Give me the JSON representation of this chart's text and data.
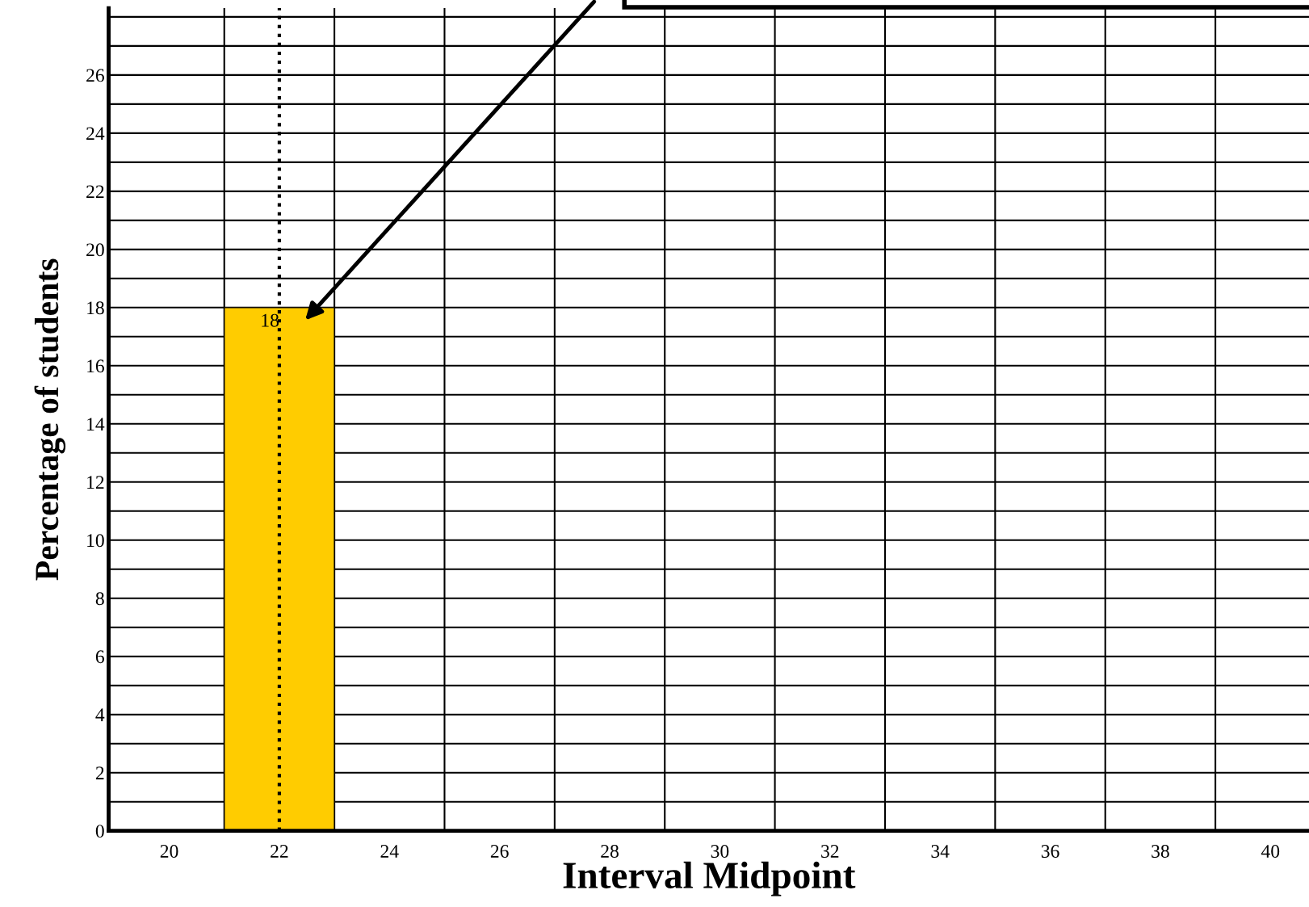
{
  "chart_data": {
    "type": "histogram",
    "xlabel": "Interval Midpoint",
    "ylabel": "Percentage of students",
    "bins": [
      21,
      23
    ],
    "values": [
      18
    ],
    "color": "#ffcc00",
    "data_labels": true,
    "xlim": [
      18.9,
      40.7
    ],
    "ylim": [
      0,
      28.3
    ],
    "xticks": [
      20,
      {
        "value": 21,
        "label": null
      },
      22,
      {
        "value": 23,
        "label": null
      },
      24,
      {
        "value": 25,
        "label": null
      },
      26,
      {
        "value": 27,
        "label": null
      },
      28,
      {
        "value": 29,
        "label": null
      },
      30,
      {
        "value": 31,
        "label": null
      },
      32,
      {
        "value": 33,
        "label": null
      },
      34,
      {
        "value": 35,
        "label": null
      },
      36,
      {
        "value": 37,
        "label": null
      },
      38,
      {
        "value": 39,
        "label": null
      },
      40
    ],
    "yticks": [
      0,
      {
        "value": 1,
        "label": null
      },
      2,
      {
        "value": 3,
        "label": null
      },
      4,
      {
        "value": 5,
        "label": null
      },
      6,
      {
        "value": 7,
        "label": null
      },
      8,
      {
        "value": 9,
        "label": null
      },
      10,
      {
        "value": 11,
        "label": null
      },
      12,
      {
        "value": 13,
        "label": null
      },
      14,
      {
        "value": 15,
        "label": null
      },
      16,
      {
        "value": 17,
        "label": null
      },
      18,
      {
        "value": 19,
        "label": null
      },
      20,
      {
        "value": 21,
        "label": null
      },
      22,
      {
        "value": 23,
        "label": null
      },
      24,
      {
        "value": 25,
        "label": null
      },
      26,
      {
        "value": 27,
        "label": null
      },
      {
        "value": 28,
        "label": null
      }
    ],
    "grid": true,
    "ref_lines": [
      {
        "axis": "x",
        "value": 22,
        "line_style": "dotted",
        "color": "#000000"
      }
    ]
  }
}
